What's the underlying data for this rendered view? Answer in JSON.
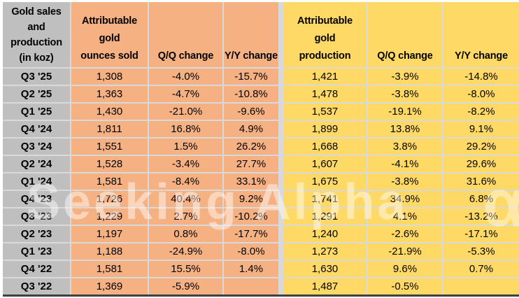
{
  "watermark": {
    "text": "Seeking Alpha",
    "symbol": "α"
  },
  "colors": {
    "sales_fill": "#F6B183",
    "production_fill": "#FFD966",
    "quarter_label_fill": "#BFBFBF",
    "gridline": "#D9D9D9",
    "bottom_border": "#404040"
  },
  "chart_data": {
    "type": "table",
    "title": "Gold sales and production (in koz)",
    "corner_header": "Gold sales\nand\nproduction\n(in koz)",
    "headers": {
      "sold": "Attributable\ngold\nounces sold",
      "sold_qq": "Q/Q change",
      "sold_yy": "Y/Y change",
      "prod": "Attributable\ngold\nproduction",
      "prod_qq": "Q/Q change",
      "prod_yy": "Y/Y change"
    },
    "rows": [
      {
        "quarter": "Q3 '25",
        "sold": "1,308",
        "sold_qq": "-4.0%",
        "sold_yy": "-15.7%",
        "prod": "1,421",
        "prod_qq": "-3.9%",
        "prod_yy": "-14.8%"
      },
      {
        "quarter": "Q2 '25",
        "sold": "1,363",
        "sold_qq": "-4.7%",
        "sold_yy": "-10.8%",
        "prod": "1,478",
        "prod_qq": "-3.8%",
        "prod_yy": "-8.0%"
      },
      {
        "quarter": "Q1 '25",
        "sold": "1,430",
        "sold_qq": "-21.0%",
        "sold_yy": "-9.6%",
        "prod": "1,537",
        "prod_qq": "-19.1%",
        "prod_yy": "-8.2%"
      },
      {
        "quarter": "Q4 '24",
        "sold": "1,811",
        "sold_qq": "16.8%",
        "sold_yy": "4.9%",
        "prod": "1,899",
        "prod_qq": "13.8%",
        "prod_yy": "9.1%"
      },
      {
        "quarter": "Q3 '24",
        "sold": "1,551",
        "sold_qq": "1.5%",
        "sold_yy": "26.2%",
        "prod": "1,668",
        "prod_qq": "3.8%",
        "prod_yy": "29.2%"
      },
      {
        "quarter": "Q2 '24",
        "sold": "1,528",
        "sold_qq": "-3.4%",
        "sold_yy": "27.7%",
        "prod": "1,607",
        "prod_qq": "-4.1%",
        "prod_yy": "29.6%"
      },
      {
        "quarter": "Q1 '24",
        "sold": "1,581",
        "sold_qq": "-8.4%",
        "sold_yy": "33.1%",
        "prod": "1,675",
        "prod_qq": "-3.8%",
        "prod_yy": "31.6%"
      },
      {
        "quarter": "Q4 '23",
        "sold": "1,726",
        "sold_qq": "40.4%",
        "sold_yy": "9.2%",
        "prod": "1,741",
        "prod_qq": "34.9%",
        "prod_yy": "6.8%"
      },
      {
        "quarter": "Q3 '23",
        "sold": "1,229",
        "sold_qq": "2.7%",
        "sold_yy": "-10.2%",
        "prod": "1,291",
        "prod_qq": "4.1%",
        "prod_yy": "-13.2%"
      },
      {
        "quarter": "Q2 '23",
        "sold": "1,197",
        "sold_qq": "0.8%",
        "sold_yy": "-17.7%",
        "prod": "1,240",
        "prod_qq": "-2.6%",
        "prod_yy": "-17.1%"
      },
      {
        "quarter": "Q1 '23",
        "sold": "1,188",
        "sold_qq": "-24.9%",
        "sold_yy": "-8.0%",
        "prod": "1,273",
        "prod_qq": "-21.9%",
        "prod_yy": "-5.3%"
      },
      {
        "quarter": "Q4 '22",
        "sold": "1,581",
        "sold_qq": "15.5%",
        "sold_yy": "1.4%",
        "prod": "1,630",
        "prod_qq": "9.6%",
        "prod_yy": "0.7%"
      },
      {
        "quarter": "Q3 '22",
        "sold": "1,369",
        "sold_qq": "-5.9%",
        "sold_yy": "",
        "prod": "1,487",
        "prod_qq": "-0.5%",
        "prod_yy": ""
      }
    ]
  }
}
